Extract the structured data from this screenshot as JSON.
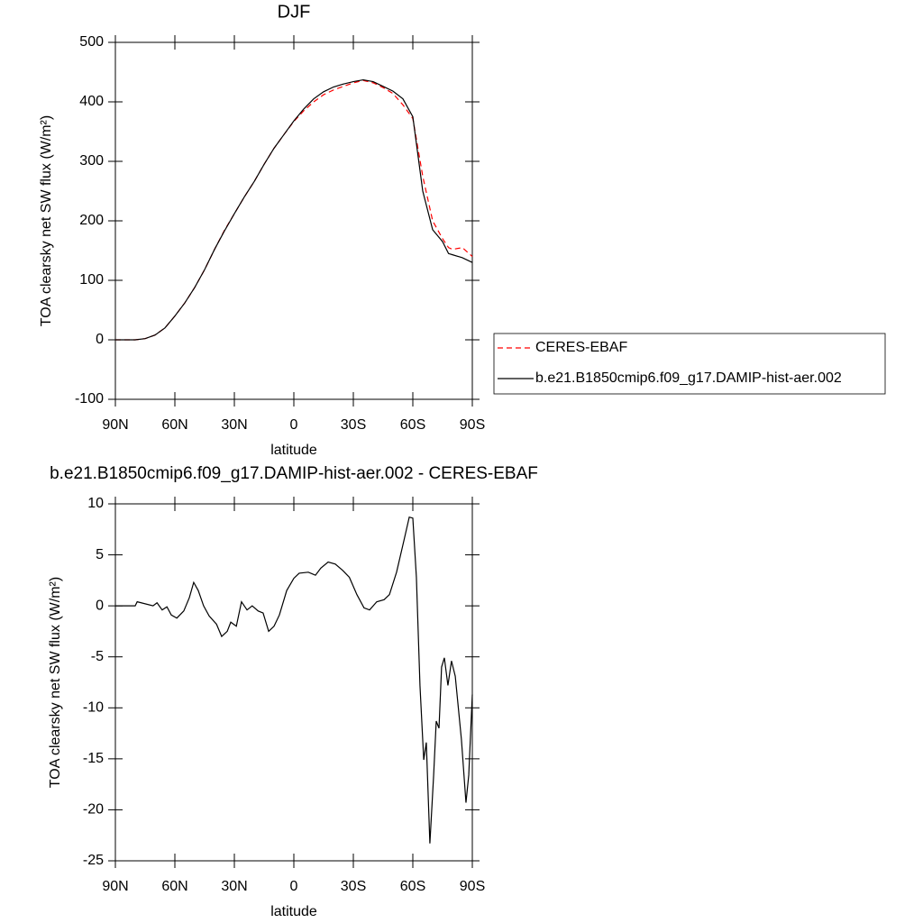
{
  "chart_data": [
    {
      "type": "line",
      "title": "DJF",
      "xlabel": "latitude",
      "ylabel": "TOA clearsky net SW flux (W/m²)",
      "x": [
        90,
        80,
        75,
        70,
        65,
        60,
        55,
        50,
        45,
        40,
        35,
        30,
        25,
        20,
        15,
        10,
        5,
        0,
        -5,
        -10,
        -15,
        -20,
        -25,
        -30,
        -35,
        -40,
        -45,
        -50,
        -55,
        -60,
        -65,
        -70,
        -75,
        -78,
        -80,
        -85,
        -90
      ],
      "series": [
        {
          "name": "CERES-EBAF",
          "color": "#ff0000",
          "style": "dashed",
          "values": [
            0,
            0,
            2,
            8,
            20,
            40,
            62,
            88,
            118,
            152,
            184,
            212,
            240,
            266,
            295,
            322,
            345,
            367,
            385,
            400,
            412,
            420,
            426,
            432,
            436,
            432,
            424,
            414,
            395,
            372,
            275,
            200,
            170,
            155,
            152,
            155,
            140
          ]
        },
        {
          "name": "b.e21.B1850cmip6.f09_g17.DAMIP-hist-aer.002",
          "color": "#000000",
          "style": "solid",
          "values": [
            0,
            0,
            2,
            8,
            20,
            40,
            62,
            88,
            118,
            152,
            183,
            212,
            240,
            266,
            295,
            322,
            345,
            368,
            388,
            405,
            417,
            425,
            430,
            434,
            437,
            434,
            426,
            418,
            405,
            375,
            250,
            185,
            165,
            145,
            143,
            138,
            130
          ]
        }
      ],
      "xlim": [
        90,
        -90
      ],
      "xticks": [
        {
          "value": 90,
          "label": "90N"
        },
        {
          "value": 60,
          "label": "60N"
        },
        {
          "value": 30,
          "label": "30N"
        },
        0,
        {
          "value": -30,
          "label": "30S"
        },
        {
          "value": -60,
          "label": "60S"
        },
        {
          "value": -90,
          "label": "90S"
        }
      ],
      "ylim": [
        -100,
        500
      ],
      "yticks": [
        -100,
        0,
        100,
        200,
        300,
        400,
        500
      ],
      "legend": "right"
    },
    {
      "type": "line",
      "title": "b.e21.B1850cmip6.f09_g17.DAMIP-hist-aer.002 - CERES-EBAF",
      "xlabel": "latitude",
      "ylabel": "TOA clearsky net SW flux (W/m²)",
      "x": [
        90,
        80,
        79,
        71,
        69,
        66.4,
        64,
        61.8,
        59,
        55.5,
        52.7,
        50.5,
        48.2,
        45.5,
        42.7,
        39,
        36.4,
        33.6,
        31.8,
        29,
        26.4,
        23.6,
        21,
        18,
        15.5,
        12.7,
        10,
        7.3,
        3.6,
        0,
        -2.7,
        -7.3,
        -10.9,
        -13.6,
        -17.3,
        -20.9,
        -24.5,
        -28,
        -31.8,
        -35.4,
        -38.2,
        -41.8,
        -45.5,
        -48.2,
        -51.8,
        -55.5,
        -58.2,
        -60,
        -61.8,
        -63.6,
        -65.5,
        -66.8,
        -68.6,
        -70.5,
        -71.8,
        -73.2,
        -74.5,
        -75.9,
        -77.7,
        -79.5,
        -81.4,
        -84.5,
        -86.8,
        -88.2,
        -90
      ],
      "values": [
        0,
        0,
        0.4,
        0,
        0.3,
        -0.4,
        -0.1,
        -0.9,
        -1.2,
        -0.5,
        0.8,
        2.3,
        1.5,
        0,
        -1,
        -1.8,
        -3.0,
        -2.5,
        -1.6,
        -2,
        0.4,
        -0.4,
        0,
        -0.5,
        -0.7,
        -2.5,
        -2,
        -0.9,
        1.5,
        2.7,
        3.2,
        3.3,
        3.0,
        3.7,
        4.3,
        4.1,
        3.5,
        2.8,
        1.1,
        -0.2,
        -0.4,
        0.4,
        0.6,
        1.1,
        3.3,
        6.4,
        8.7,
        8.6,
        2.8,
        -7.8,
        -15.1,
        -13.4,
        -23.3,
        -16.6,
        -11.3,
        -12,
        -6,
        -5.1,
        -7.8,
        -5.4,
        -6.9,
        -13.1,
        -19.3,
        -16.6,
        -8.7
      ],
      "color": "#000000",
      "xlim": [
        90,
        -90
      ],
      "xticks": [
        {
          "value": 90,
          "label": "90N"
        },
        {
          "value": 60,
          "label": "60N"
        },
        {
          "value": 30,
          "label": "30N"
        },
        0,
        {
          "value": -30,
          "label": "30S"
        },
        {
          "value": -60,
          "label": "60S"
        },
        {
          "value": -90,
          "label": "90S"
        }
      ],
      "ylim": [
        -25,
        10
      ],
      "yticks": [
        -25,
        -20,
        -15,
        -10,
        -5,
        0,
        5,
        10
      ]
    }
  ]
}
